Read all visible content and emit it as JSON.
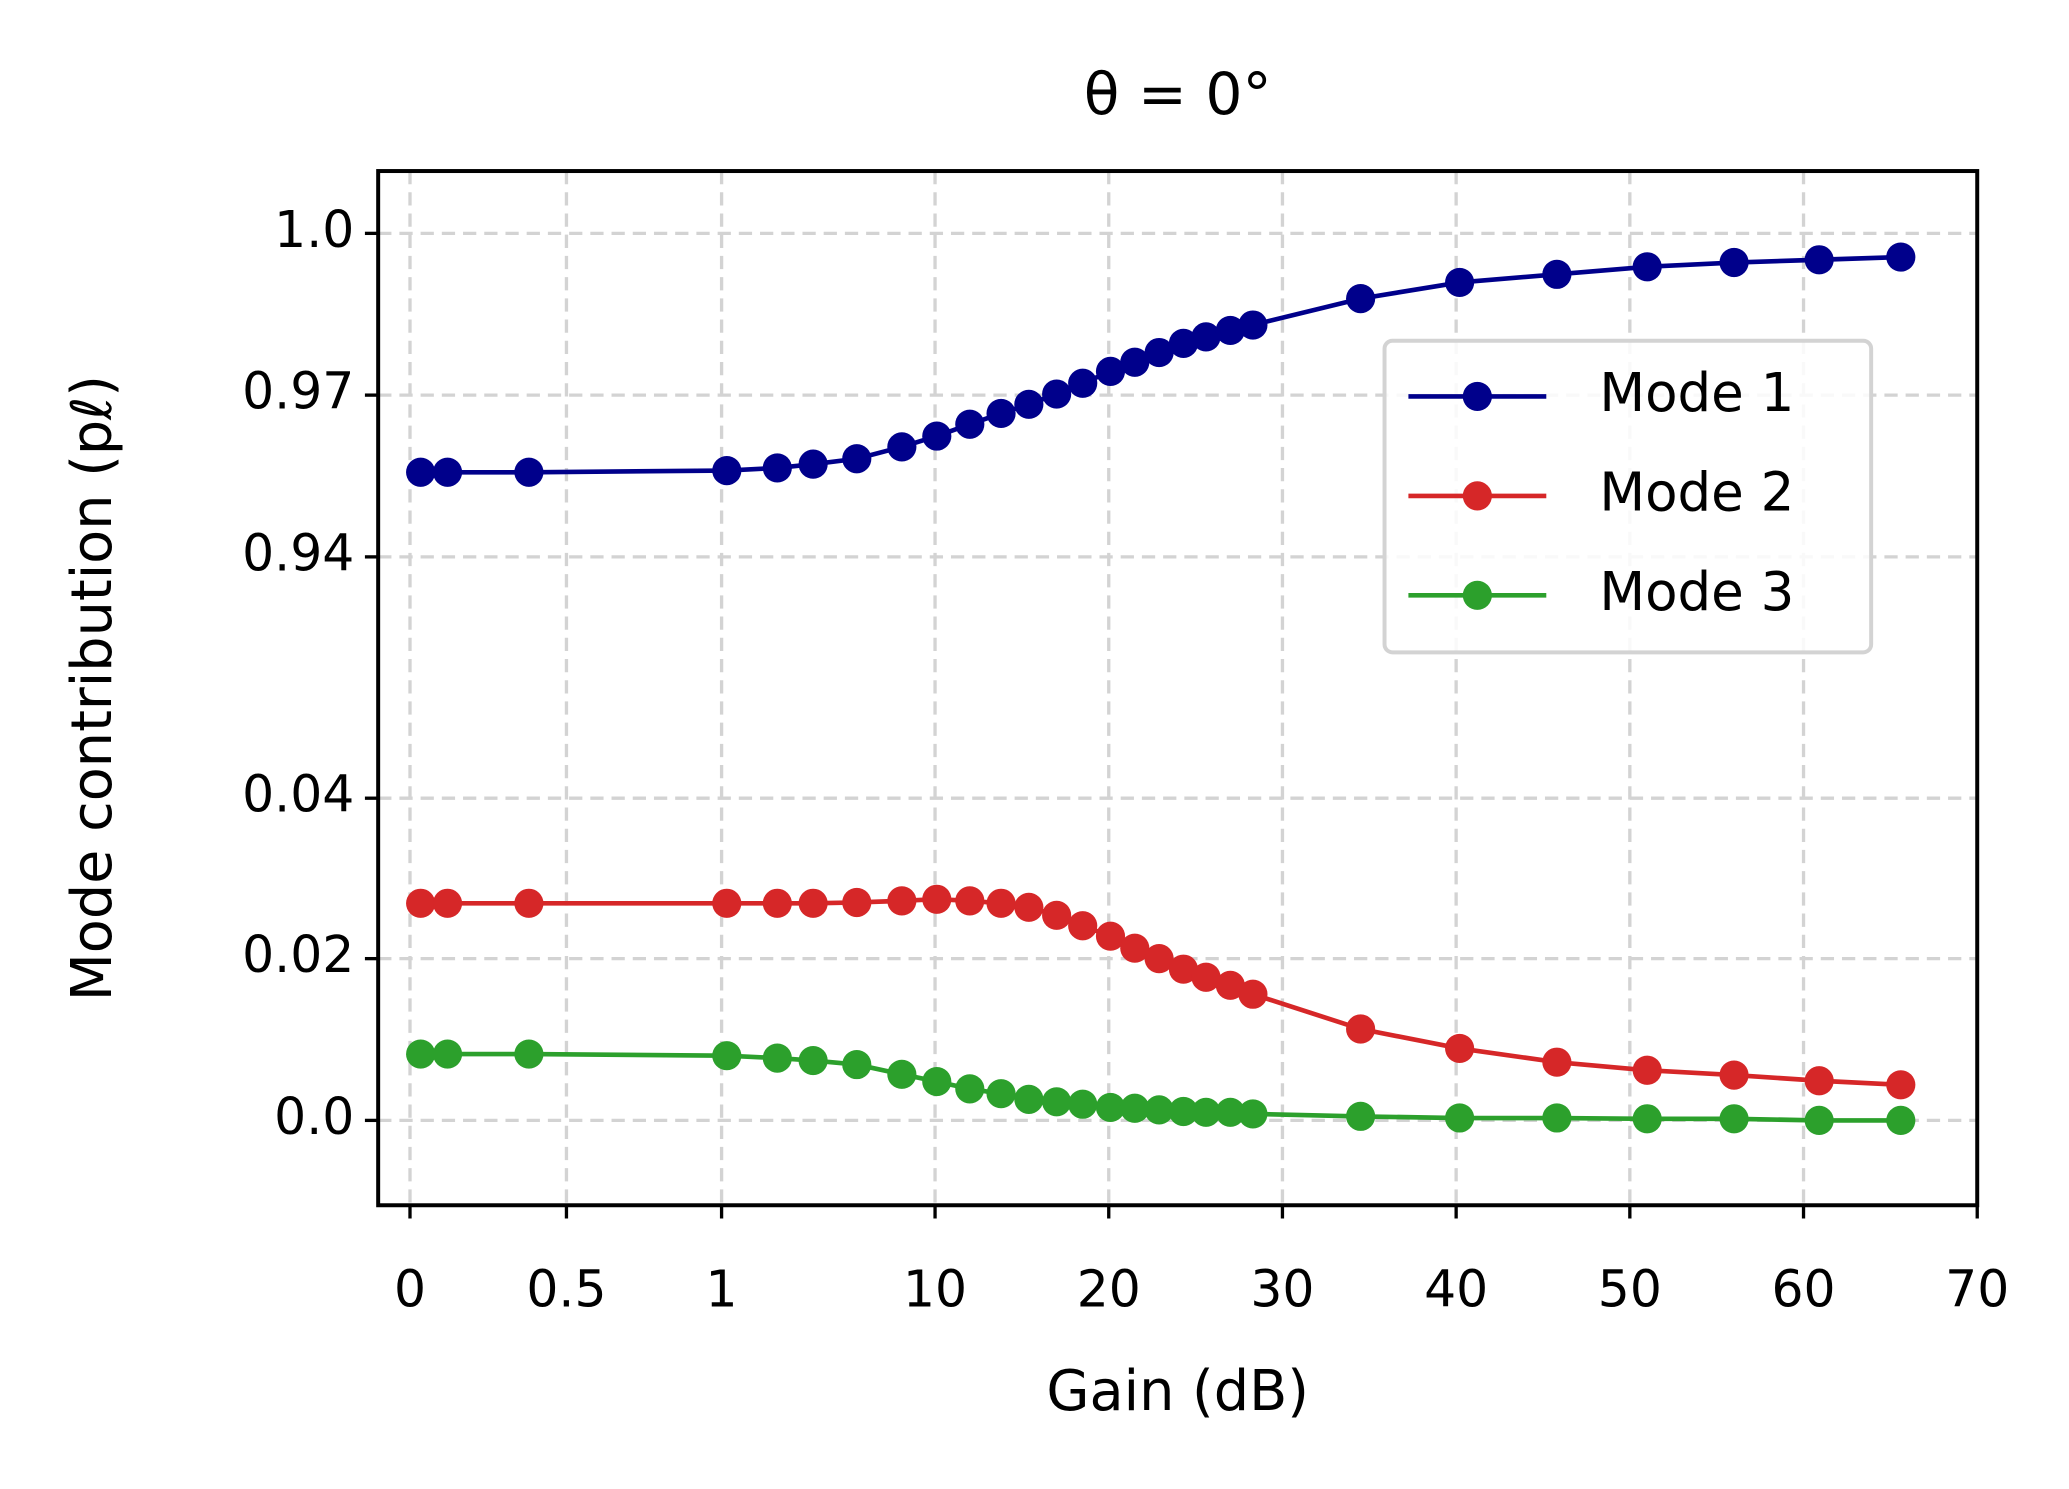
{
  "chart_data": {
    "type": "line",
    "title": "θ = 0°",
    "x_label": "Gain (dB)",
    "y_label": "Mode contribution (pℓ)",
    "xlim": [
      -0.1,
      70
    ],
    "xticks": [
      0,
      0.5,
      1,
      10,
      20,
      30,
      40,
      50,
      60,
      70
    ],
    "ylim": [
      -0.0105,
      1.0115
    ],
    "yticks": [
      {
        "value": 0,
        "label": "0.0"
      },
      0.02,
      0.04,
      0.94,
      0.97,
      {
        "value": 1,
        "label": "1.0"
      }
    ],
    "grid": true,
    "legend": "upper right",
    "x": [
      0.034,
      0.12,
      0.38,
      1.22,
      3.35,
      4.86,
      6.7,
      8.6,
      10.1,
      12.0,
      13.8,
      15.4,
      17.0,
      18.5,
      20.1,
      21.5,
      22.9,
      24.3,
      25.6,
      27.0,
      28.3,
      34.5,
      40.2,
      45.8,
      51.0,
      56.0,
      60.9,
      65.6
    ],
    "series": [
      {
        "name": "Mode 1",
        "color": "#00008b",
        "values": [
          0.9557,
          0.9557,
          0.9557,
          0.956,
          0.9565,
          0.9572,
          0.9582,
          0.9604,
          0.9624,
          0.9646,
          0.9666,
          0.9683,
          0.9702,
          0.9722,
          0.9744,
          0.9761,
          0.9779,
          0.9796,
          0.9808,
          0.982,
          0.983,
          0.9879,
          0.9909,
          0.9924,
          0.9938,
          0.9946,
          0.9951,
          0.9956
        ]
      },
      {
        "name": "Mode 2",
        "color": "#d62728",
        "values": [
          0.0269,
          0.0269,
          0.0269,
          0.0269,
          0.0269,
          0.0269,
          0.027,
          0.0272,
          0.0274,
          0.0272,
          0.0269,
          0.0264,
          0.0254,
          0.0241,
          0.0228,
          0.0213,
          0.02,
          0.0187,
          0.0177,
          0.0167,
          0.0156,
          0.0113,
          0.0089,
          0.0072,
          0.0062,
          0.0056,
          0.0049,
          0.0044
        ]
      },
      {
        "name": "Mode 3",
        "color": "#2ca02c",
        "values": [
          0.0082,
          0.0082,
          0.0082,
          0.008,
          0.0077,
          0.0074,
          0.0069,
          0.0057,
          0.0048,
          0.0039,
          0.0033,
          0.0026,
          0.0023,
          0.002,
          0.0016,
          0.0015,
          0.0013,
          0.0011,
          0.001,
          0.001,
          0.0008,
          0.0005,
          0.0003,
          0.0003,
          0.0002,
          0.0002,
          0,
          0
        ]
      }
    ]
  }
}
